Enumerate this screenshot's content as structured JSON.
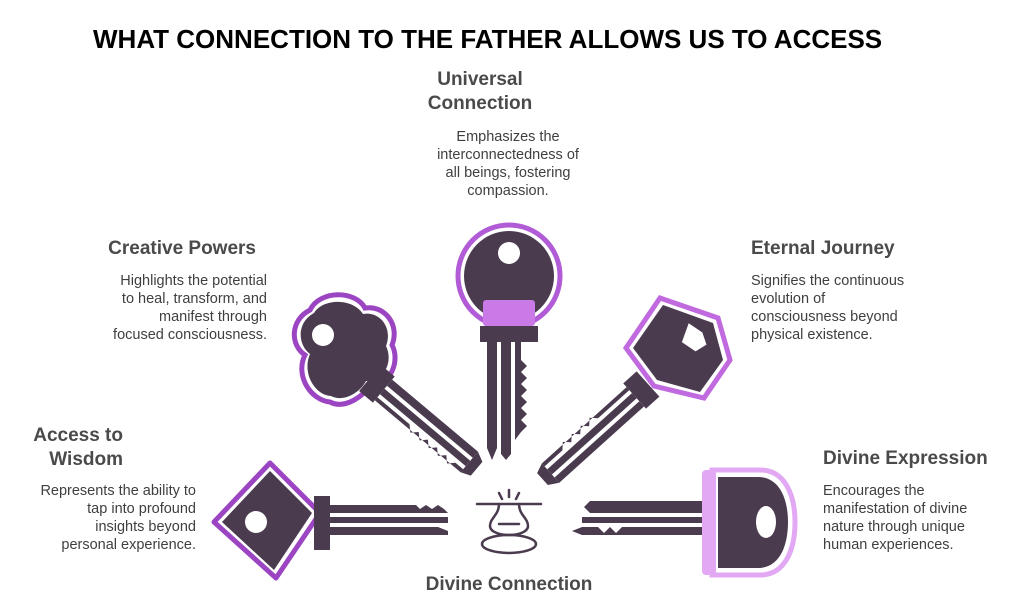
{
  "title": "WHAT CONNECTION TO THE FATHER ALLOWS US TO ACCESS",
  "center": {
    "label": "Divine Connection"
  },
  "items": [
    {
      "heading": "Universal Connection",
      "heading_lines": [
        "Universal",
        "Connection"
      ],
      "description_lines": [
        "Emphasizes the",
        "interconnectedness of",
        "all beings, fostering",
        "compassion."
      ]
    },
    {
      "heading": "Creative Powers",
      "heading_lines": [
        "Creative Powers"
      ],
      "description_lines": [
        "Highlights the potential",
        "to heal, transform, and",
        "manifest through",
        "focused consciousness."
      ]
    },
    {
      "heading": "Eternal Journey",
      "heading_lines": [
        "Eternal Journey"
      ],
      "description_lines": [
        "Signifies the continuous",
        "evolution of",
        "consciousness beyond",
        "physical existence."
      ]
    },
    {
      "heading": "Access to Wisdom",
      "heading_lines": [
        "Access to",
        "Wisdom"
      ],
      "description_lines": [
        "Represents the ability to",
        "tap into profound",
        "insights beyond",
        "personal experience."
      ]
    },
    {
      "heading": "Divine Expression",
      "heading_lines": [
        "Divine Expression"
      ],
      "description_lines": [
        "Encourages the",
        "manifestation of divine",
        "nature through unique",
        "human experiences."
      ]
    }
  ],
  "colors": {
    "key_body": "#4a3b4f",
    "outline_dark": "#9b45c2",
    "outline_light": "#d9a3ea",
    "heading_text": "#4a4a4a",
    "body_text": "#3f3f3f"
  },
  "icons": [
    "key-icon",
    "portal-icon"
  ]
}
